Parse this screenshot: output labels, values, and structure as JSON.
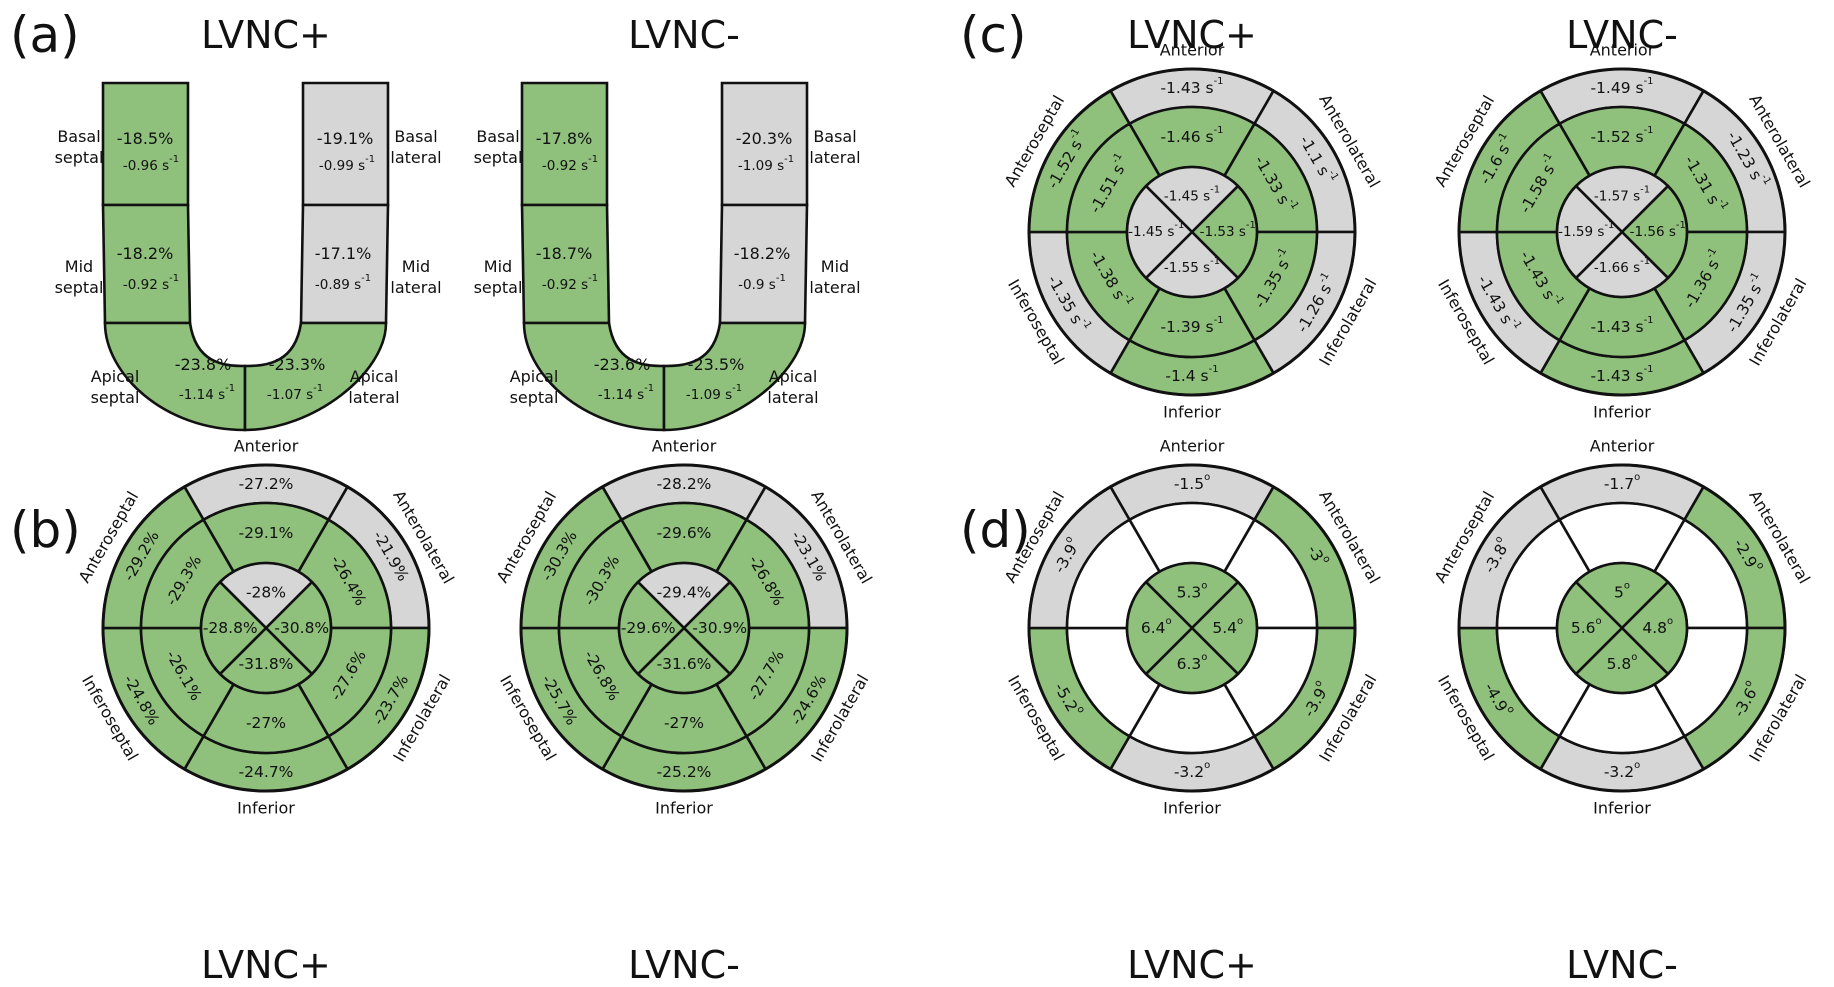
{
  "colors": {
    "green": "#8fc07c",
    "gray": "#d6d6d6",
    "white": "#ffffff",
    "line": "#111111"
  },
  "panels": {
    "a": {
      "label": "(a)",
      "columns": [
        {
          "title": "LVNC+",
          "segments": {
            "basal_septal": {
              "name": "Basal septal",
              "strain": "-18.5%",
              "rate": "-0.96 s",
              "color": "green"
            },
            "mid_septal": {
              "name": "Mid septal",
              "strain": "-18.2%",
              "rate": "-0.92 s",
              "color": "green"
            },
            "apical_septal": {
              "name": "Apical septal",
              "strain": "-23.8%",
              "rate": "-1.14 s",
              "color": "green"
            },
            "basal_lateral": {
              "name": "Basal lateral",
              "strain": "-19.1%",
              "rate": "-0.99 s",
              "color": "gray"
            },
            "mid_lateral": {
              "name": "Mid lateral",
              "strain": "-17.1%",
              "rate": "-0.89 s",
              "color": "gray"
            },
            "apical_lateral": {
              "name": "Apical lateral",
              "strain": "-23.3%",
              "rate": "-1.07 s",
              "color": "green"
            }
          }
        },
        {
          "title": "LVNC-",
          "segments": {
            "basal_septal": {
              "name": "Basal septal",
              "strain": "-17.8%",
              "rate": "-0.92 s",
              "color": "green"
            },
            "mid_septal": {
              "name": "Mid septal",
              "strain": "-18.7%",
              "rate": "-0.92 s",
              "color": "green"
            },
            "apical_septal": {
              "name": "Apical septal",
              "strain": "-23.6%",
              "rate": "-1.14 s",
              "color": "green"
            },
            "basal_lateral": {
              "name": "Basal lateral",
              "strain": "-20.3%",
              "rate": "-1.09 s",
              "color": "gray"
            },
            "mid_lateral": {
              "name": "Mid lateral",
              "strain": "-18.2%",
              "rate": "-0.9 s",
              "color": "gray"
            },
            "apical_lateral": {
              "name": "Apical lateral",
              "strain": "-23.5%",
              "rate": "-1.09 s",
              "color": "green"
            }
          }
        }
      ],
      "rate_superscript": "-1"
    },
    "b": {
      "label": "(b)",
      "value_kind": "strain",
      "bullseyes": [
        {
          "title": "LVNC+",
          "outer": [
            {
              "region": "Anterior",
              "value": "-27.2%",
              "color": "gray"
            },
            {
              "region": "Anterolateral",
              "value": "-21.9%",
              "color": "gray"
            },
            {
              "region": "Inferolateral",
              "value": "-23.7%",
              "color": "green"
            },
            {
              "region": "Inferior",
              "value": "-24.7%",
              "color": "green"
            },
            {
              "region": "Inferoseptal",
              "value": "-24.8%",
              "color": "green"
            },
            {
              "region": "Anteroseptal",
              "value": "-29.2%",
              "color": "green"
            }
          ],
          "middle": [
            "-29.1%",
            "-26.4%",
            "-27.6%",
            "-27%",
            "-26.1%",
            "-29.3%"
          ],
          "middle_colors": [
            "green",
            "green",
            "green",
            "green",
            "green",
            "green"
          ],
          "apex": [
            "-28%",
            "-30.8%",
            "-31.8%",
            "-28.8%"
          ],
          "apex_colors": [
            "gray",
            "green",
            "green",
            "green"
          ]
        },
        {
          "title": "LVNC-",
          "outer": [
            {
              "region": "Anterior",
              "value": "-28.2%",
              "color": "gray"
            },
            {
              "region": "Anterolateral",
              "value": "-23.1%",
              "color": "gray"
            },
            {
              "region": "Inferolateral",
              "value": "-24.6%",
              "color": "green"
            },
            {
              "region": "Inferior",
              "value": "-25.2%",
              "color": "green"
            },
            {
              "region": "Inferoseptal",
              "value": "-25.7%",
              "color": "green"
            },
            {
              "region": "Anteroseptal",
              "value": "-30.3%",
              "color": "green"
            }
          ],
          "middle": [
            "-29.6%",
            "-26.8%",
            "-27.7%",
            "-27%",
            "-26.8%",
            "-30.3%"
          ],
          "middle_colors": [
            "green",
            "green",
            "green",
            "green",
            "green",
            "green"
          ],
          "apex": [
            "-29.4%",
            "-30.9%",
            "-31.6%",
            "-29.6%"
          ],
          "apex_colors": [
            "gray",
            "green",
            "green",
            "green"
          ]
        }
      ]
    },
    "c": {
      "label": "(c)",
      "value_kind": "rate",
      "rate_superscript": "-1",
      "bullseyes": [
        {
          "title": "LVNC+",
          "outer": [
            {
              "region": "Anterior",
              "value": "-1.43 s",
              "color": "gray"
            },
            {
              "region": "Anterolateral",
              "value": "-1.1 s",
              "color": "gray"
            },
            {
              "region": "Inferolateral",
              "value": "-1.26 s",
              "color": "gray"
            },
            {
              "region": "Inferior",
              "value": "-1.4 s",
              "color": "green"
            },
            {
              "region": "Inferoseptal",
              "value": "-1.35 s",
              "color": "gray"
            },
            {
              "region": "Anteroseptal",
              "value": "-1.52 s",
              "color": "green"
            }
          ],
          "middle": [
            "-1.46 s",
            "-1.33 s",
            "-1.35 s",
            "-1.39 s",
            "-1.38 s",
            "-1.51 s"
          ],
          "middle_colors": [
            "green",
            "green",
            "green",
            "green",
            "green",
            "green"
          ],
          "apex": [
            "-1.45 s",
            "-1.53 s",
            "-1.55 s",
            "-1.45 s"
          ],
          "apex_colors": [
            "gray",
            "green",
            "gray",
            "gray"
          ]
        },
        {
          "title": "LVNC-",
          "outer": [
            {
              "region": "Anterior",
              "value": "-1.49 s",
              "color": "gray"
            },
            {
              "region": "Anterolateral",
              "value": "-1.23 s",
              "color": "gray"
            },
            {
              "region": "Inferolateral",
              "value": "-1.35 s",
              "color": "gray"
            },
            {
              "region": "Inferior",
              "value": "-1.43 s",
              "color": "green"
            },
            {
              "region": "Inferoseptal",
              "value": "-1.43 s",
              "color": "gray"
            },
            {
              "region": "Anteroseptal",
              "value": "-1.6 s",
              "color": "green"
            }
          ],
          "middle": [
            "-1.52 s",
            "-1.31 s",
            "-1.36 s",
            "-1.43 s",
            "-1.43 s",
            "-1.58 s"
          ],
          "middle_colors": [
            "green",
            "green",
            "green",
            "green",
            "green",
            "green"
          ],
          "apex": [
            "-1.57 s",
            "-1.56 s",
            "-1.66 s",
            "-1.59 s"
          ],
          "apex_colors": [
            "gray",
            "green",
            "gray",
            "gray"
          ]
        }
      ]
    },
    "d": {
      "label": "(d)",
      "value_kind": "angle",
      "degree_superscript": "o",
      "bullseyes": [
        {
          "title": "LVNC+",
          "outer": [
            {
              "region": "Anterior",
              "value": "-1.5",
              "color": "gray"
            },
            {
              "region": "Anterolateral",
              "value": "-3",
              "color": "green"
            },
            {
              "region": "Inferolateral",
              "value": "-3.9",
              "color": "green"
            },
            {
              "region": "Inferior",
              "value": "-3.2",
              "color": "gray"
            },
            {
              "region": "Inferoseptal",
              "value": "-5.2",
              "color": "green"
            },
            {
              "region": "Anteroseptal",
              "value": "-3.9",
              "color": "gray"
            }
          ],
          "middle": [
            "",
            "",
            "",
            "",
            "",
            ""
          ],
          "middle_colors": [
            "white",
            "white",
            "white",
            "white",
            "white",
            "white"
          ],
          "apex": [
            "5.3",
            "5.4",
            "6.3",
            "6.4"
          ],
          "apex_colors": [
            "green",
            "green",
            "green",
            "green"
          ]
        },
        {
          "title": "LVNC-",
          "outer": [
            {
              "region": "Anterior",
              "value": "-1.7",
              "color": "gray"
            },
            {
              "region": "Anterolateral",
              "value": "-2.9",
              "color": "green"
            },
            {
              "region": "Inferolateral",
              "value": "-3.6",
              "color": "green"
            },
            {
              "region": "Inferior",
              "value": "-3.2",
              "color": "gray"
            },
            {
              "region": "Inferoseptal",
              "value": "-4.9",
              "color": "green"
            },
            {
              "region": "Anteroseptal",
              "value": "-3.8",
              "color": "gray"
            }
          ],
          "middle": [
            "",
            "",
            "",
            "",
            "",
            ""
          ],
          "middle_colors": [
            "white",
            "white",
            "white",
            "white",
            "white",
            "white"
          ],
          "apex": [
            "5",
            "4.8",
            "5.8",
            "5.6"
          ],
          "apex_colors": [
            "green",
            "green",
            "green",
            "green"
          ]
        }
      ]
    }
  },
  "bottom_titles": [
    "LVNC+",
    "LVNC-",
    "LVNC+",
    "LVNC-"
  ]
}
